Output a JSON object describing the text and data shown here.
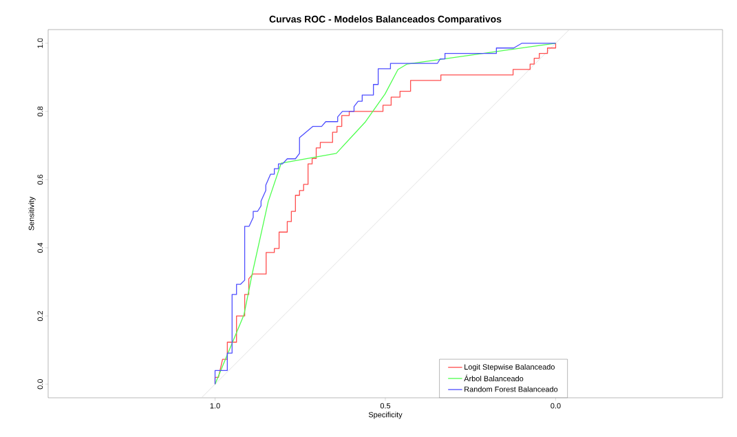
{
  "chart_data": {
    "type": "line",
    "title": "Curvas ROC - Modelos Balanceados Comparativos",
    "xlabel": "Specificity",
    "ylabel": "Sensitivity",
    "xlim": [
      1.49,
      -0.49
    ],
    "ylim": [
      -0.04,
      1.04
    ],
    "xticks": [
      {
        "value": 1,
        "label": "1.0"
      },
      {
        "value": 0.5,
        "label": "0.5"
      },
      {
        "value": 0,
        "label": "0.0"
      }
    ],
    "yticks": [
      {
        "value": 0,
        "label": "0.0"
      },
      {
        "value": 0.2,
        "label": "0.2"
      },
      {
        "value": 0.4,
        "label": "0.4"
      },
      {
        "value": 0.6,
        "label": "0.6"
      },
      {
        "value": 0.8,
        "label": "0.8"
      },
      {
        "value": 1,
        "label": "1.0"
      }
    ],
    "grid": false,
    "legend": "bottom right",
    "marker": "none",
    "line_style": "solid",
    "series": [
      {
        "color": "#d9d9d9",
        "x": [
          1.04,
          -0.04
        ],
        "values": [
          -0.04,
          1.04
        ]
      },
      {
        "name": "Logit Stepwise Balanceado",
        "color": "#ff4d4d",
        "x": [
          1.0,
          1.0,
          0.99,
          0.978,
          0.964,
          0.964,
          0.937,
          0.937,
          0.913,
          0.913,
          0.901,
          0.901,
          0.889,
          0.85,
          0.85,
          0.826,
          0.826,
          0.812,
          0.812,
          0.788,
          0.788,
          0.776,
          0.776,
          0.764,
          0.764,
          0.752,
          0.752,
          0.74,
          0.74,
          0.727,
          0.727,
          0.715,
          0.715,
          0.703,
          0.703,
          0.691,
          0.691,
          0.655,
          0.655,
          0.642,
          0.642,
          0.628,
          0.628,
          0.606,
          0.606,
          0.507,
          0.507,
          0.483,
          0.483,
          0.457,
          0.457,
          0.426,
          0.426,
          0.337,
          0.337,
          0.125,
          0.125,
          0.075,
          0.075,
          0.063,
          0.063,
          0.048,
          0.048,
          0.024,
          0.024,
          0,
          0
        ],
        "values": [
          0.0,
          0.02,
          0.02,
          0.073,
          0.073,
          0.123,
          0.123,
          0.2,
          0.2,
          0.263,
          0.263,
          0.309,
          0.323,
          0.323,
          0.386,
          0.386,
          0.398,
          0.398,
          0.446,
          0.446,
          0.477,
          0.477,
          0.507,
          0.507,
          0.554,
          0.554,
          0.568,
          0.568,
          0.586,
          0.586,
          0.646,
          0.646,
          0.662,
          0.662,
          0.693,
          0.693,
          0.709,
          0.709,
          0.739,
          0.739,
          0.756,
          0.756,
          0.788,
          0.788,
          0.8,
          0.8,
          0.818,
          0.818,
          0.842,
          0.842,
          0.859,
          0.859,
          0.891,
          0.891,
          0.907,
          0.907,
          0.923,
          0.923,
          0.939,
          0.939,
          0.956,
          0.956,
          0.97,
          0.97,
          0.986,
          0.986,
          1.0
        ]
      },
      {
        "name": "Árbol Balanceado",
        "color": "#4dff4d",
        "x": [
          1.0,
          0.915,
          0.891,
          0.844,
          0.806,
          0.644,
          0.558,
          0.501,
          0.463,
          0.436,
          0
        ],
        "values": [
          0.0,
          0.204,
          0.323,
          0.535,
          0.648,
          0.677,
          0.77,
          0.851,
          0.923,
          0.939,
          1.0
        ]
      },
      {
        "name": "Random Forest Balanceado",
        "color": "#4d4dff",
        "x": [
          1.0,
          1.0,
          0.964,
          0.964,
          0.95,
          0.95,
          0.937,
          0.937,
          0.925,
          0.913,
          0.913,
          0.9,
          0.888,
          0.888,
          0.875,
          0.865,
          0.865,
          0.851,
          0.851,
          0.837,
          0.826,
          0.826,
          0.814,
          0.814,
          0.802,
          0.788,
          0.764,
          0.752,
          0.752,
          0.713,
          0.687,
          0.675,
          0.64,
          0.64,
          0.626,
          0.592,
          0.592,
          0.58,
          0.568,
          0.568,
          0.535,
          0.535,
          0.521,
          0.521,
          0.485,
          0.485,
          0.347,
          0.339,
          0.325,
          0.325,
          0.174,
          0.174,
          0.123,
          0.099,
          0
        ],
        "values": [
          0.0,
          0.04,
          0.04,
          0.091,
          0.091,
          0.263,
          0.263,
          0.293,
          0.293,
          0.305,
          0.463,
          0.463,
          0.489,
          0.507,
          0.507,
          0.523,
          0.537,
          0.568,
          0.584,
          0.616,
          0.616,
          0.632,
          0.632,
          0.646,
          0.646,
          0.661,
          0.661,
          0.677,
          0.723,
          0.756,
          0.756,
          0.77,
          0.77,
          0.784,
          0.8,
          0.8,
          0.814,
          0.83,
          0.83,
          0.848,
          0.848,
          0.879,
          0.879,
          0.925,
          0.925,
          0.941,
          0.941,
          0.954,
          0.954,
          0.97,
          0.97,
          0.986,
          0.986,
          1.0,
          1.0
        ]
      }
    ]
  }
}
